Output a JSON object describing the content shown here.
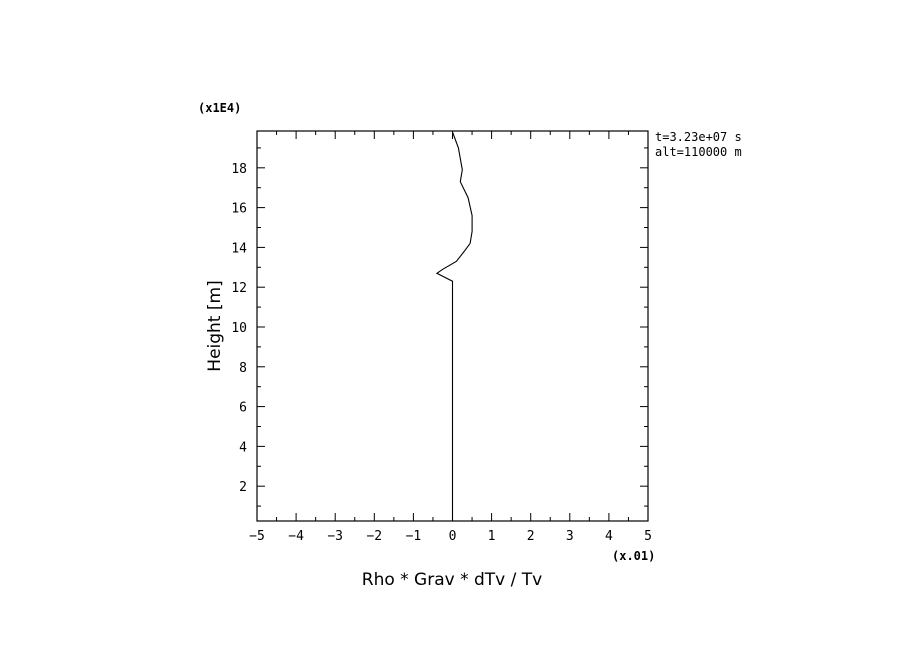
{
  "chart_data": {
    "type": "line",
    "xlabel": "Rho * Grav * dTv / Tv",
    "ylabel": "Height [m]",
    "x_multiplier": "(x.01)",
    "y_multiplier": "(x1E4)",
    "xlim": [
      -5,
      5
    ],
    "ylim": [
      0.25,
      19.85
    ],
    "x_ticks": [
      -5,
      -4,
      -3,
      -2,
      -1,
      0,
      1,
      2,
      3,
      4,
      5
    ],
    "x_tick_labels": [
      "−5",
      "−4",
      "−3",
      "−2",
      "−1",
      "0",
      "1",
      "2",
      "3",
      "4",
      "5"
    ],
    "y_ticks": [
      2,
      4,
      6,
      8,
      10,
      12,
      14,
      16,
      18
    ],
    "y_tick_labels": [
      "2",
      "4",
      "6",
      "8",
      "10",
      "12",
      "14",
      "16",
      "18"
    ],
    "annotations": [
      "t=3.23e+07 s",
      "alt=110000 m"
    ],
    "grid": false,
    "series": [
      {
        "x": [
          0.0,
          0.0,
          0.0,
          -0.4,
          -0.25,
          0.1,
          0.3,
          0.45,
          0.5,
          0.5,
          0.4,
          0.2,
          0.25,
          0.15,
          0.0
        ],
        "y": [
          0.25,
          6.0,
          12.3,
          12.7,
          12.9,
          13.3,
          13.8,
          14.2,
          14.8,
          15.6,
          16.5,
          17.3,
          17.9,
          19.0,
          19.8
        ]
      }
    ]
  }
}
